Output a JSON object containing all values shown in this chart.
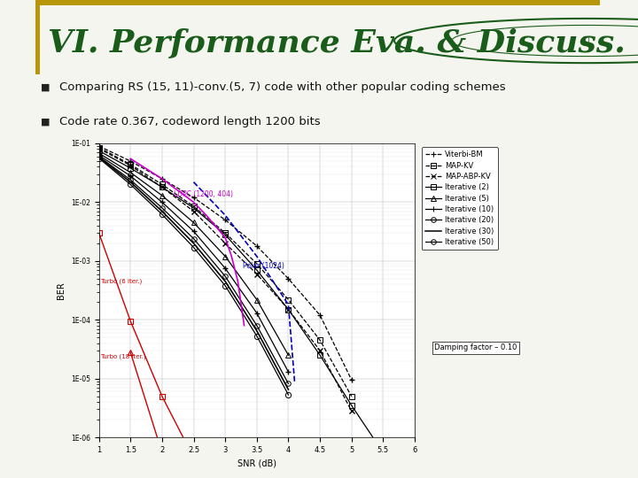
{
  "title": "VI. Performance Eva. & Discuss.",
  "bullet1": "Comparing RS (15, 11)-conv.(5, 7) code with other popular coding schemes",
  "bullet2": "Code rate 0.367, codeword length 1200 bits",
  "bg_color": "#f5f5f0",
  "title_color": "#1a5c1a",
  "header_bar_color": "#b8960c",
  "bottom_bar_color": "#b8960c",
  "xlabel": "SNR (dB)",
  "ylabel": "BER",
  "xlim": [
    1,
    6
  ],
  "ylim_log": [
    -6,
    -1
  ],
  "chart_bg": "#ffffff",
  "series_viterbi": {
    "snr": [
      1.0,
      1.5,
      2.0,
      2.5,
      3.0,
      3.5,
      4.0,
      4.5,
      5.0
    ],
    "ber": [
      0.09,
      0.05,
      0.025,
      0.012,
      0.005,
      0.0018,
      0.0005,
      0.00012,
      9.5e-06
    ]
  },
  "series_mapkv": {
    "snr": [
      1.0,
      1.5,
      2.0,
      2.5,
      3.0,
      3.5,
      4.0,
      4.5,
      5.0
    ],
    "ber": [
      0.085,
      0.044,
      0.02,
      0.0085,
      0.003,
      0.0009,
      0.00022,
      4.5e-05,
      5e-06
    ]
  },
  "series_mapabpkv": {
    "snr": [
      1.0,
      1.5,
      2.0,
      2.5,
      3.0,
      3.5,
      4.0,
      4.5,
      5.0
    ],
    "ber": [
      0.082,
      0.042,
      0.018,
      0.007,
      0.002,
      0.0006,
      0.00015,
      3e-05,
      2.8e-06
    ]
  },
  "series_iter2": {
    "snr": [
      1.0,
      1.5,
      2.0,
      2.5,
      3.0,
      3.5,
      4.0,
      4.5,
      5.0,
      5.5
    ],
    "ber": [
      0.075,
      0.038,
      0.018,
      0.008,
      0.0028,
      0.0007,
      0.00015,
      2.5e-05,
      3.5e-06,
      5.5e-07
    ]
  },
  "series_iter5": {
    "snr": [
      1.0,
      1.5,
      2.0,
      2.5,
      3.0,
      3.5,
      4.0
    ],
    "ber": [
      0.068,
      0.032,
      0.013,
      0.0045,
      0.0012,
      0.00022,
      2.5e-05
    ]
  },
  "series_iter10": {
    "snr": [
      1.0,
      1.5,
      2.0,
      2.5,
      3.0,
      3.5,
      4.0
    ],
    "ber": [
      0.063,
      0.028,
      0.01,
      0.0032,
      0.00075,
      0.00013,
      1.3e-05
    ]
  },
  "series_iter20": {
    "snr": [
      1.0,
      1.5,
      2.0,
      2.5,
      3.0,
      3.5,
      4.0
    ],
    "ber": [
      0.06,
      0.024,
      0.008,
      0.0024,
      0.00055,
      8e-05,
      8.2e-06
    ]
  },
  "series_iter30": {
    "snr": [
      1.0,
      1.5,
      2.0,
      2.5,
      3.0,
      3.5,
      4.0
    ],
    "ber": [
      0.058,
      0.022,
      0.007,
      0.002,
      0.00045,
      6.5e-05,
      6.5e-06
    ]
  },
  "series_iter50": {
    "snr": [
      1.0,
      1.5,
      2.0,
      2.5,
      3.0,
      3.5,
      4.0
    ],
    "ber": [
      0.056,
      0.02,
      0.0062,
      0.0017,
      0.00038,
      5.3e-05,
      5.3e-06
    ]
  },
  "series_ldpc": {
    "snr": [
      1.5,
      2.0,
      2.5,
      2.7,
      3.0,
      3.1,
      3.2,
      3.3
    ],
    "ber": [
      0.055,
      0.025,
      0.01,
      0.006,
      0.0025,
      0.0012,
      0.00045,
      8e-05
    ]
  },
  "series_polar": {
    "snr": [
      2.5,
      3.0,
      3.5,
      4.0,
      4.1
    ],
    "ber": [
      0.022,
      0.006,
      0.0012,
      0.00018,
      8.5e-06
    ]
  },
  "series_turbo6": {
    "snr": [
      1.0,
      1.5,
      2.0,
      2.5
    ],
    "ber": [
      0.003,
      9.5e-05,
      5e-06,
      4.5e-07
    ]
  },
  "series_turbo18": {
    "snr": [
      1.5,
      2.0,
      2.5
    ],
    "ber": [
      2.8e-05,
      5.5e-07,
      2.8e-08
    ]
  }
}
